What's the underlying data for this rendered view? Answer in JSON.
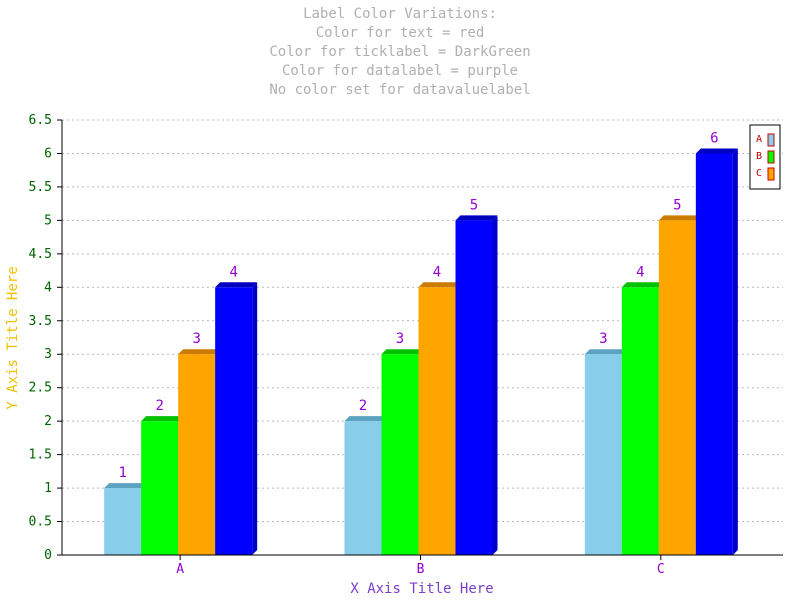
{
  "colors": {
    "title": "#b0b0b0",
    "tick": "#006400",
    "datalabel": "#9400d3",
    "xtitle": "#7a3fc9",
    "ytitle": "#f0c000",
    "legend_text": "#c00000",
    "grid": "#bbbbbb"
  },
  "chart_data": {
    "type": "bar",
    "title": [
      "Label Color Variations:",
      "Color for text = red",
      "Color for ticklabel = DarkGreen",
      "Color for datalabel = purple",
      "No color set for datavaluelabel"
    ],
    "xlabel": "X Axis Title Here",
    "ylabel": "Y Axis Title Here",
    "categories": [
      "A",
      "B",
      "C"
    ],
    "ylim": [
      0,
      6.5
    ],
    "yticks": [
      "0",
      "0.5",
      "1",
      "1.5",
      "2",
      "2.5",
      "3",
      "3.5",
      "4",
      "4.5",
      "5",
      "5.5",
      "6",
      "6.5"
    ],
    "grid": true,
    "legend": {
      "placement": "top-right",
      "entries": [
        "A",
        "B",
        "C"
      ]
    },
    "series": [
      {
        "values": [
          1,
          2,
          3
        ],
        "color": "#87ceeb",
        "top": "#5ba3c0",
        "side": "#6aa9c4"
      },
      {
        "values": [
          2,
          3,
          4
        ],
        "color": "#00ff00",
        "top": "#00c000",
        "side": "#00cc00"
      },
      {
        "values": [
          3,
          4,
          5
        ],
        "color": "#ffa500",
        "top": "#cc7a00",
        "side": "#d98c00"
      },
      {
        "values": [
          4,
          5,
          6
        ],
        "color": "#0000ff",
        "top": "#0000c0",
        "side": "#0000cc"
      }
    ],
    "value_labels": [
      [
        "1",
        "2",
        "3"
      ],
      [
        "2",
        "3",
        "4"
      ],
      [
        "3",
        "4",
        "5"
      ],
      [
        "4",
        "5",
        "6"
      ]
    ]
  }
}
